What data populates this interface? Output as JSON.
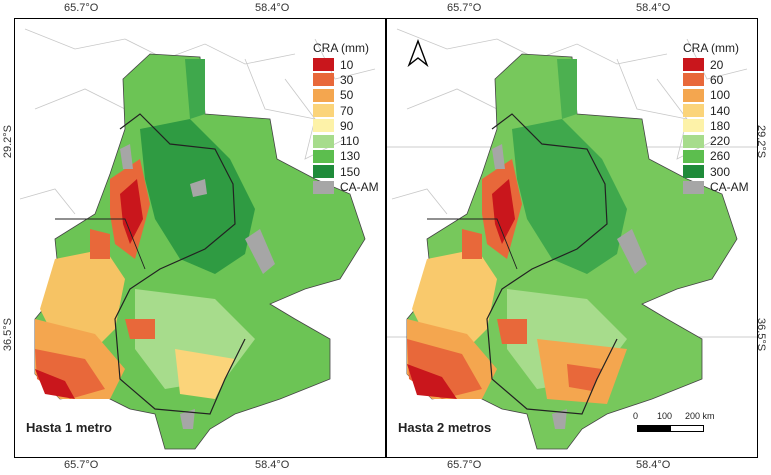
{
  "axes": {
    "lon_left": "65.7°O",
    "lon_right": "58.4°O",
    "lat_top": "29.2°S",
    "lat_bottom": "36.5°S"
  },
  "panels": [
    {
      "label": "Hasta 1 metro",
      "legend": {
        "title": "CRA (mm)",
        "items": [
          {
            "label": "10",
            "color": "#c9161c"
          },
          {
            "label": "30",
            "color": "#e8683a"
          },
          {
            "label": "50",
            "color": "#f4a64f"
          },
          {
            "label": "70",
            "color": "#fbd47a"
          },
          {
            "label": "90",
            "color": "#fdf2a8"
          },
          {
            "label": "110",
            "color": "#a7dc8c"
          },
          {
            "label": "130",
            "color": "#5cbe4e"
          },
          {
            "label": "150",
            "color": "#1f8b3a"
          },
          {
            "label": "CA-AM",
            "color": "#a6a6a6"
          }
        ]
      }
    },
    {
      "label": "Hasta 2 metros",
      "legend": {
        "title": "CRA (mm)",
        "items": [
          {
            "label": "20",
            "color": "#c9161c"
          },
          {
            "label": "60",
            "color": "#e8683a"
          },
          {
            "label": "100",
            "color": "#f4a64f"
          },
          {
            "label": "140",
            "color": "#fbd47a"
          },
          {
            "label": "180",
            "color": "#fdf2a8"
          },
          {
            "label": "220",
            "color": "#a7dc8c"
          },
          {
            "label": "260",
            "color": "#5cbe4e"
          },
          {
            "label": "300",
            "color": "#1f8b3a"
          },
          {
            "label": "CA-AM",
            "color": "#a6a6a6"
          }
        ]
      },
      "north_arrow": "north-arrow-icon",
      "scalebar": {
        "labels": [
          "0",
          "100",
          "200 km"
        ]
      }
    }
  ]
}
